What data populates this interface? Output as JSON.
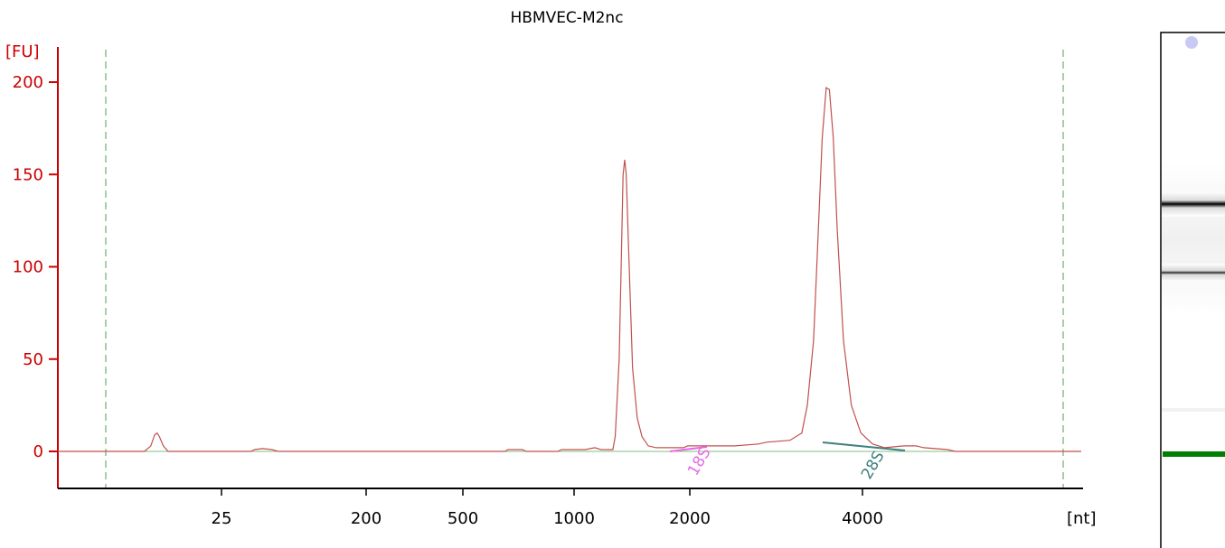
{
  "chart_data": {
    "type": "line",
    "title": "HBMVEC-M2nc",
    "ylabel": "[FU]",
    "xlabel": "[nt]",
    "y_ticks": [
      0,
      50,
      100,
      150,
      200
    ],
    "x_ticks": [
      "25",
      "200",
      "500",
      "1000",
      "2000",
      "4000"
    ],
    "ylim": [
      -20,
      220
    ],
    "grid": false,
    "annotations": [
      {
        "text": "18S",
        "color": "#e76be6"
      },
      {
        "text": "28S",
        "color": "#3f7f7f"
      }
    ],
    "colors": {
      "trace": "#c0504d",
      "axis_y": "#cc0000",
      "axis_x": "#000000",
      "baseline": "#7fbf7f",
      "marker_lines": "#4f9f4f",
      "gel_marker": "#008000"
    },
    "series": [
      {
        "points": [
          [
            0.0,
            0
          ],
          [
            1.1,
            0
          ],
          [
            1.18,
            3
          ],
          [
            1.23,
            9
          ],
          [
            1.26,
            10
          ],
          [
            1.29,
            8
          ],
          [
            1.34,
            3
          ],
          [
            1.4,
            0
          ],
          [
            2.45,
            0
          ],
          [
            2.5,
            1
          ],
          [
            2.6,
            1.5
          ],
          [
            2.72,
            1
          ],
          [
            2.8,
            0
          ],
          [
            5.68,
            0
          ],
          [
            5.72,
            1
          ],
          [
            5.9,
            1
          ],
          [
            5.95,
            0
          ],
          [
            6.35,
            0
          ],
          [
            6.4,
            1
          ],
          [
            6.7,
            1
          ],
          [
            6.82,
            2
          ],
          [
            6.9,
            1
          ],
          [
            7.05,
            1
          ],
          [
            7.08,
            8
          ],
          [
            7.13,
            50
          ],
          [
            7.16,
            110
          ],
          [
            7.18,
            150
          ],
          [
            7.2,
            158
          ],
          [
            7.22,
            150
          ],
          [
            7.25,
            110
          ],
          [
            7.3,
            45
          ],
          [
            7.36,
            18
          ],
          [
            7.42,
            8
          ],
          [
            7.5,
            3
          ],
          [
            7.6,
            2
          ],
          [
            7.95,
            2
          ],
          [
            8.0,
            3
          ],
          [
            8.3,
            3
          ],
          [
            8.6,
            3
          ],
          [
            8.9,
            4
          ],
          [
            9.0,
            5
          ],
          [
            9.3,
            6
          ],
          [
            9.45,
            10
          ],
          [
            9.52,
            25
          ],
          [
            9.6,
            60
          ],
          [
            9.66,
            120
          ],
          [
            9.71,
            170
          ],
          [
            9.76,
            197
          ],
          [
            9.8,
            196
          ],
          [
            9.85,
            170
          ],
          [
            9.9,
            120
          ],
          [
            9.98,
            60
          ],
          [
            10.08,
            25
          ],
          [
            10.2,
            10
          ],
          [
            10.35,
            4
          ],
          [
            10.5,
            2
          ],
          [
            10.75,
            3
          ],
          [
            10.9,
            3
          ],
          [
            11.0,
            2
          ],
          [
            11.3,
            1
          ],
          [
            11.4,
            0
          ],
          [
            13.0,
            0
          ]
        ]
      }
    ]
  }
}
